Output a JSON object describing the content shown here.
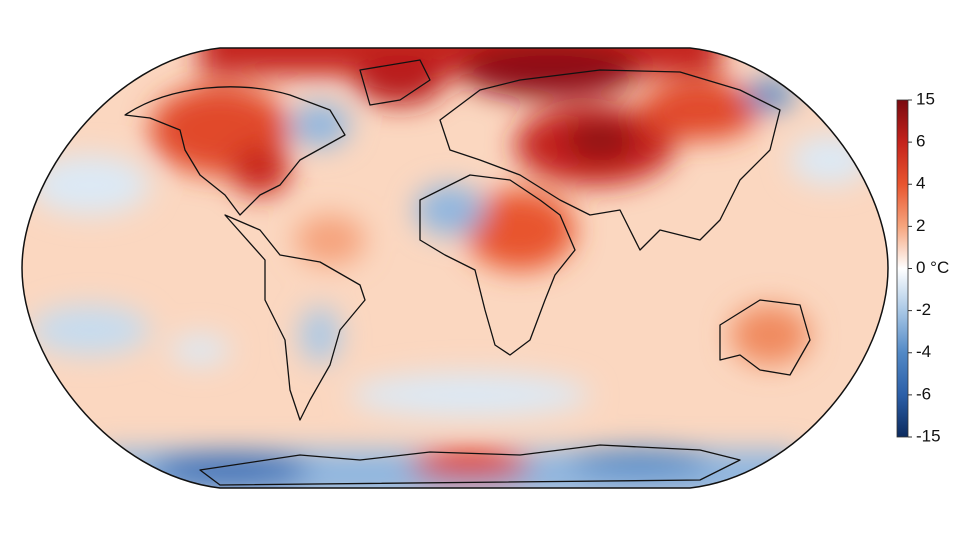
{
  "colorbar": {
    "ticks": [
      15,
      6,
      4,
      2,
      {
        "value": 0,
        "label": "0 °C"
      },
      -2,
      -4,
      -6,
      -15
    ],
    "colors": [
      "#7a0a10",
      "#c4231c",
      "#e8552f",
      "#f6a57e",
      "#ffffff",
      "#a9c8e6",
      "#5289c6",
      "#2b5fa8",
      "#0c2a5e"
    ]
  }
}
